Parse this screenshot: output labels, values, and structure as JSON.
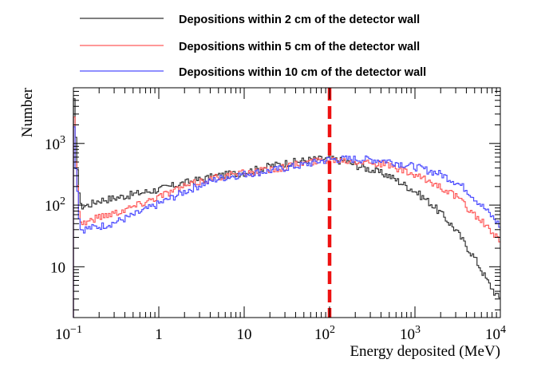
{
  "chart_data": {
    "type": "histogram",
    "xlabel": "Energy deposited (MeV)",
    "ylabel": "Number",
    "x_scale": "log",
    "y_scale": "log",
    "xlim": [
      0.1,
      10000
    ],
    "ylim": [
      1.5,
      8000
    ],
    "x_ticks": [
      {
        "value": 0.1,
        "base": "10",
        "exp": "−1"
      },
      {
        "value": 1,
        "base": "1",
        "exp": ""
      },
      {
        "value": 10,
        "base": "10",
        "exp": ""
      },
      {
        "value": 100,
        "base": "10",
        "exp": "2"
      },
      {
        "value": 1000,
        "base": "10",
        "exp": "3"
      },
      {
        "value": 10000,
        "base": "10",
        "exp": "4"
      }
    ],
    "y_ticks": [
      {
        "value": 10,
        "base": "10",
        "exp": ""
      },
      {
        "value": 100,
        "base": "10",
        "exp": "2"
      },
      {
        "value": 1000,
        "base": "10",
        "exp": "3"
      }
    ],
    "marker_line": {
      "x": 100,
      "color": "#ee1111",
      "style": "dashed"
    },
    "grid": false,
    "legend_position": "top",
    "series": [
      {
        "name": "Depositions within 2 cm of the detector wall",
        "color": "#333333",
        "x": [
          0.1,
          0.12,
          0.15,
          0.2,
          0.3,
          0.5,
          1,
          2,
          3,
          5,
          10,
          20,
          30,
          50,
          70,
          100,
          150,
          200,
          300,
          500,
          1000,
          1500,
          2000,
          3000,
          4000,
          5000,
          6000,
          7000,
          8000,
          9000,
          10000
        ],
        "y": [
          4800,
          95,
          100,
          120,
          130,
          150,
          180,
          230,
          260,
          300,
          340,
          430,
          480,
          530,
          560,
          560,
          520,
          450,
          380,
          300,
          170,
          110,
          75,
          40,
          22,
          14,
          9,
          6,
          4.5,
          3.5,
          3
        ]
      },
      {
        "name": "Depositions within 5 cm of the detector wall",
        "color": "#ff5a5a",
        "x": [
          0.1,
          0.12,
          0.15,
          0.2,
          0.3,
          0.5,
          1,
          2,
          3,
          5,
          10,
          20,
          30,
          50,
          70,
          100,
          150,
          200,
          300,
          500,
          1000,
          1500,
          2000,
          3000,
          4000,
          5000,
          6000,
          7000,
          8000,
          9000,
          10000
        ],
        "y": [
          2500,
          50,
          55,
          65,
          75,
          95,
          140,
          200,
          240,
          290,
          330,
          380,
          420,
          480,
          520,
          560,
          540,
          530,
          500,
          440,
          300,
          240,
          200,
          140,
          95,
          70,
          55,
          45,
          35,
          30,
          25
        ]
      },
      {
        "name": "Depositions within 10 cm of the detector wall",
        "color": "#4d4dff",
        "x": [
          0.1,
          0.12,
          0.15,
          0.2,
          0.3,
          0.5,
          1,
          2,
          3,
          5,
          10,
          20,
          30,
          50,
          70,
          100,
          150,
          200,
          300,
          500,
          1000,
          1500,
          2000,
          3000,
          4000,
          5000,
          6000,
          7000,
          8000,
          9000,
          10000
        ],
        "y": [
          1800,
          40,
          42,
          45,
          52,
          68,
          105,
          165,
          210,
          270,
          320,
          360,
          400,
          450,
          500,
          550,
          560,
          560,
          550,
          520,
          420,
          360,
          320,
          240,
          180,
          130,
          100,
          80,
          65,
          55,
          45
        ]
      }
    ]
  }
}
